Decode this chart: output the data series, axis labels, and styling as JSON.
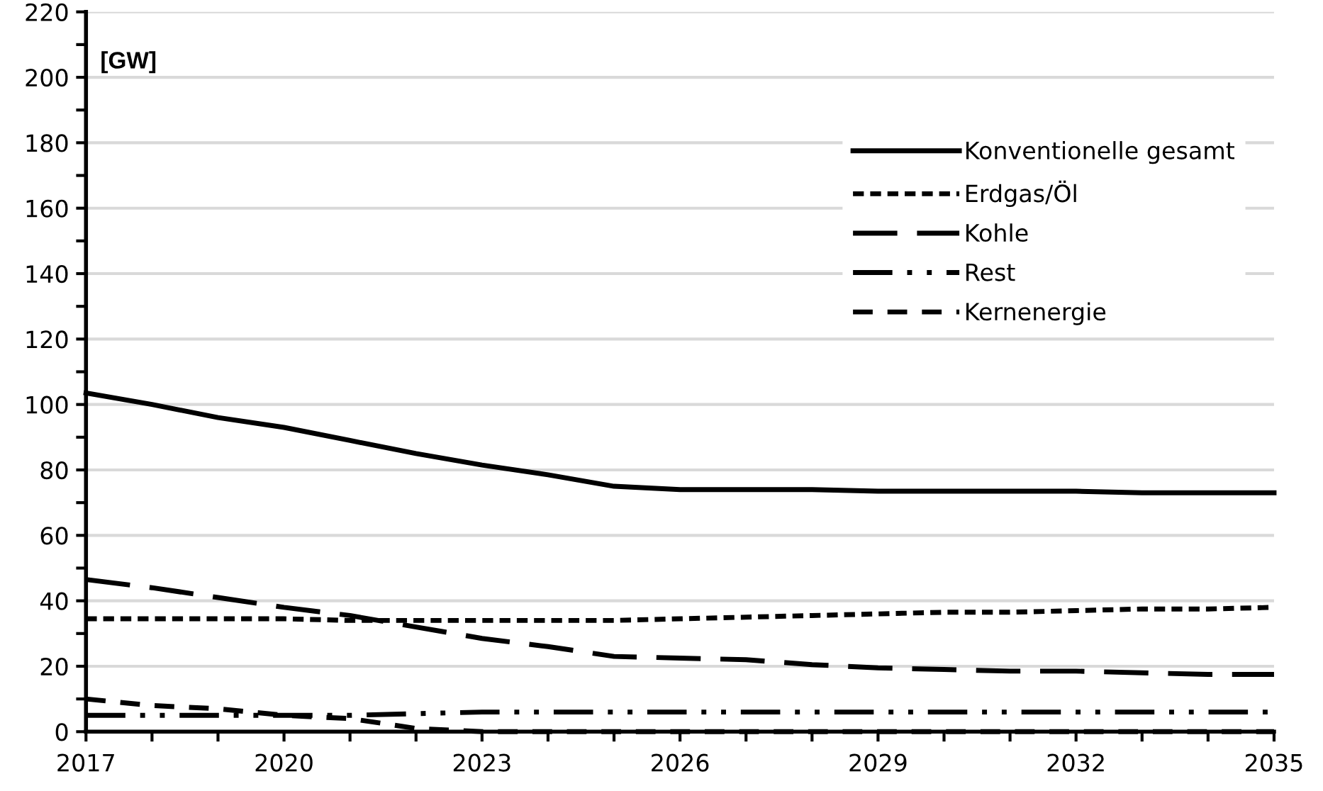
{
  "chart_data": {
    "type": "line",
    "ylabel": "[GW]",
    "x": [
      2017,
      2018,
      2019,
      2020,
      2021,
      2022,
      2023,
      2024,
      2025,
      2026,
      2027,
      2028,
      2029,
      2030,
      2031,
      2032,
      2033,
      2034,
      2035
    ],
    "series": [
      {
        "name": "Konventionelle gesamt",
        "color": "#000000",
        "line_style": "solid",
        "values": [
          103.5,
          100,
          96,
          93,
          89,
          85,
          81.5,
          78.5,
          75,
          74,
          74,
          74,
          73.5,
          73.5,
          73.5,
          73.5,
          73,
          73,
          73
        ]
      },
      {
        "name": "Erdgas/Öl",
        "color": "#000000",
        "line_style": "dotted",
        "values": [
          34.5,
          34.5,
          34.5,
          34.5,
          34,
          34,
          34,
          34,
          34,
          34.5,
          35,
          35.5,
          36,
          36.5,
          36.5,
          37,
          37.5,
          37.5,
          38
        ]
      },
      {
        "name": "Kohle",
        "color": "#000000",
        "line_style": "longdash",
        "values": [
          46.5,
          44,
          41,
          38,
          35.5,
          32,
          28.5,
          26,
          23,
          22.5,
          22,
          20.5,
          19.5,
          19,
          18.5,
          18.5,
          18,
          17.5,
          17.5
        ]
      },
      {
        "name": "Rest",
        "color": "#000000",
        "line_style": "dashdotdot",
        "values": [
          5,
          5,
          5,
          5,
          5,
          5.5,
          6,
          6,
          6,
          6,
          6,
          6,
          6,
          6,
          6,
          6,
          6,
          6,
          6
        ]
      },
      {
        "name": "Kernenergie",
        "color": "#000000",
        "line_style": "dashed",
        "values": [
          10,
          8,
          7,
          5,
          4,
          1,
          0,
          0,
          0,
          0,
          0,
          0,
          0,
          0,
          0,
          0,
          0,
          0,
          0
        ]
      }
    ],
    "xlim": [
      2017,
      2035
    ],
    "xticks": [
      2017,
      {
        "value": 2018,
        "label": null
      },
      {
        "value": 2019,
        "label": null
      },
      2020,
      {
        "value": 2021,
        "label": null
      },
      {
        "value": 2022,
        "label": null
      },
      2023,
      {
        "value": 2024,
        "label": null
      },
      {
        "value": 2025,
        "label": null
      },
      2026,
      {
        "value": 2027,
        "label": null
      },
      {
        "value": 2028,
        "label": null
      },
      2029,
      {
        "value": 2030,
        "label": null
      },
      {
        "value": 2031,
        "label": null
      },
      2032,
      {
        "value": 2033,
        "label": null
      },
      {
        "value": 2034,
        "label": null
      },
      2035
    ],
    "ylim": [
      0,
      220
    ],
    "yticks": [
      0,
      {
        "value": 10,
        "label": null
      },
      20,
      {
        "value": 30,
        "label": null
      },
      40,
      {
        "value": 50,
        "label": null
      },
      60,
      {
        "value": 70,
        "label": null
      },
      80,
      {
        "value": 90,
        "label": null
      },
      100,
      {
        "value": 110,
        "label": null
      },
      120,
      {
        "value": 130,
        "label": null
      },
      140,
      {
        "value": 150,
        "label": null
      },
      160,
      {
        "value": 170,
        "label": null
      },
      180,
      {
        "value": 190,
        "label": null
      },
      200,
      {
        "value": 210,
        "label": null
      },
      220
    ],
    "grid": "y",
    "legend": "top right"
  }
}
